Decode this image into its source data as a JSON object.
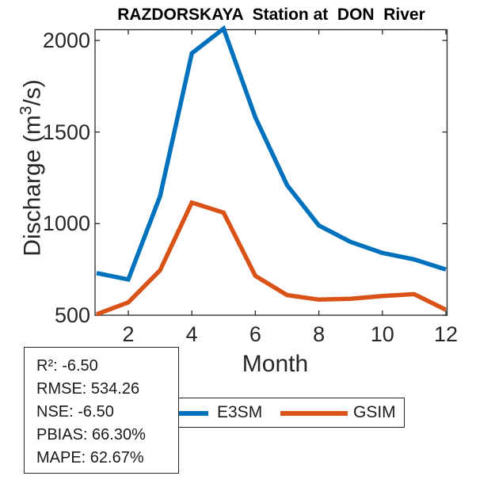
{
  "chart_data": {
    "type": "line",
    "title": "RAZDORSKAYA  Station at  DON  River",
    "xlabel": "Month",
    "ylabel": "Discharge (m³/s)",
    "ylabel_parts": {
      "prefix": "Discharge (m",
      "sup": "3",
      "suffix": "/s)"
    },
    "x": [
      1,
      2,
      3,
      4,
      5,
      6,
      7,
      8,
      9,
      10,
      11,
      12
    ],
    "xticks": [
      2,
      4,
      6,
      8,
      10,
      12
    ],
    "yticks": [
      500,
      1000,
      1500,
      2000
    ],
    "xlim": [
      1,
      12
    ],
    "ylim": [
      500,
      2060
    ],
    "grid": false,
    "legend_position": "below",
    "series": [
      {
        "name": "E3SM",
        "color": "#0072BD",
        "values": [
          730,
          695,
          1150,
          1930,
          2065,
          1580,
          1210,
          990,
          900,
          840,
          805,
          750
        ]
      },
      {
        "name": "GSIM",
        "color": "#D95319",
        "values": [
          505,
          570,
          745,
          1115,
          1060,
          715,
          610,
          585,
          590,
          605,
          615,
          530
        ]
      }
    ]
  },
  "legend": {
    "items": [
      {
        "label": "E3SM",
        "color": "#0072BD"
      },
      {
        "label": "GSIM",
        "color": "#D95319"
      }
    ]
  },
  "stats_box": {
    "lines": [
      "R²: -6.50",
      "RMSE: 534.26",
      "NSE: -6.50",
      "PBIAS: 66.30%",
      "MAPE: 62.67%"
    ]
  }
}
